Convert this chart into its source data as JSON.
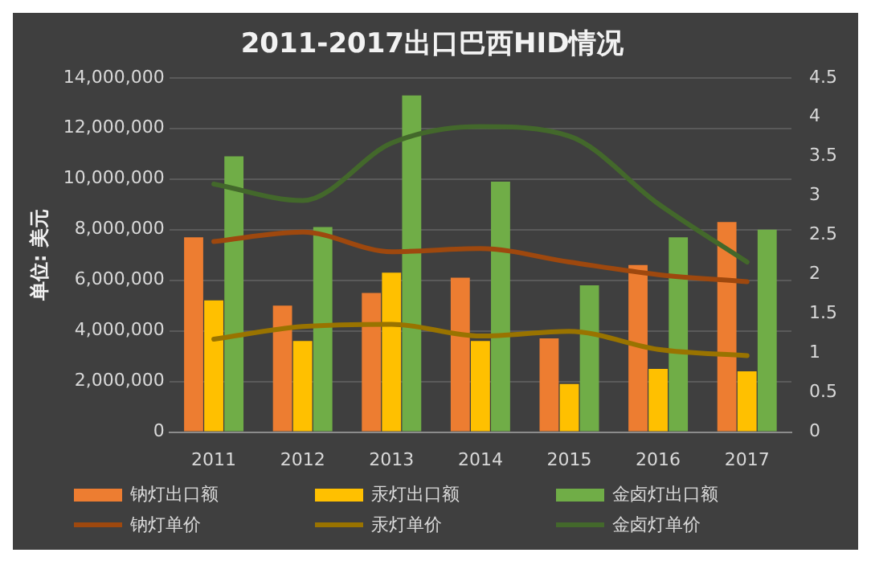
{
  "chart_data": {
    "type": "bar",
    "title": "2011-2017出口巴西HID情况",
    "ylabel": "单位: 美元",
    "categories": [
      "2011",
      "2012",
      "2013",
      "2014",
      "2015",
      "2016",
      "2017"
    ],
    "series": [
      {
        "name": "钠灯出口额",
        "color": "#ed7d31",
        "values": [
          7700000,
          5000000,
          5500000,
          6100000,
          3700000,
          6600000,
          8300000
        ]
      },
      {
        "name": "汞灯出口额",
        "color": "#ffc000",
        "values": [
          5200000,
          3600000,
          6300000,
          3600000,
          1900000,
          2500000,
          2400000
        ]
      },
      {
        "name": "金卤灯出口额",
        "color": "#70ad47",
        "values": [
          10900000,
          8100000,
          13300000,
          9900000,
          5800000,
          7700000,
          8000000
        ]
      },
      {
        "name": "钠灯单价",
        "type": "line",
        "axis": "y2",
        "color": "#9e480e",
        "values": [
          2.42,
          2.54,
          2.29,
          2.33,
          2.16,
          2.0,
          1.91
        ]
      },
      {
        "name": "汞灯单价",
        "type": "line",
        "axis": "y2",
        "color": "#997300",
        "values": [
          1.18,
          1.34,
          1.37,
          1.22,
          1.28,
          1.05,
          0.97
        ]
      },
      {
        "name": "金卤灯单价",
        "type": "line",
        "axis": "y2",
        "color": "#43682b",
        "values": [
          3.15,
          2.94,
          3.67,
          3.88,
          3.76,
          2.9,
          2.16
        ]
      }
    ],
    "ylim": [
      0,
      14000000
    ],
    "yticks": [
      0,
      {
        "value": 2000000,
        "label": "2,000,000"
      },
      {
        "value": 4000000,
        "label": "4,000,000"
      },
      {
        "value": 6000000,
        "label": "6,000,000"
      },
      {
        "value": 8000000,
        "label": "8,000,000"
      },
      {
        "value": 10000000,
        "label": "10,000,000"
      },
      {
        "value": 12000000,
        "label": "12,000,000"
      },
      {
        "value": 14000000,
        "label": "14,000,000"
      }
    ],
    "y2lim": [
      0,
      4.5
    ],
    "y2ticks": [
      0,
      0.5,
      1,
      1.5,
      2,
      2.5,
      3,
      3.5,
      4,
      4.5
    ],
    "grid": "y",
    "legend": "bottom",
    "marker": "none",
    "line_style": "solid"
  }
}
